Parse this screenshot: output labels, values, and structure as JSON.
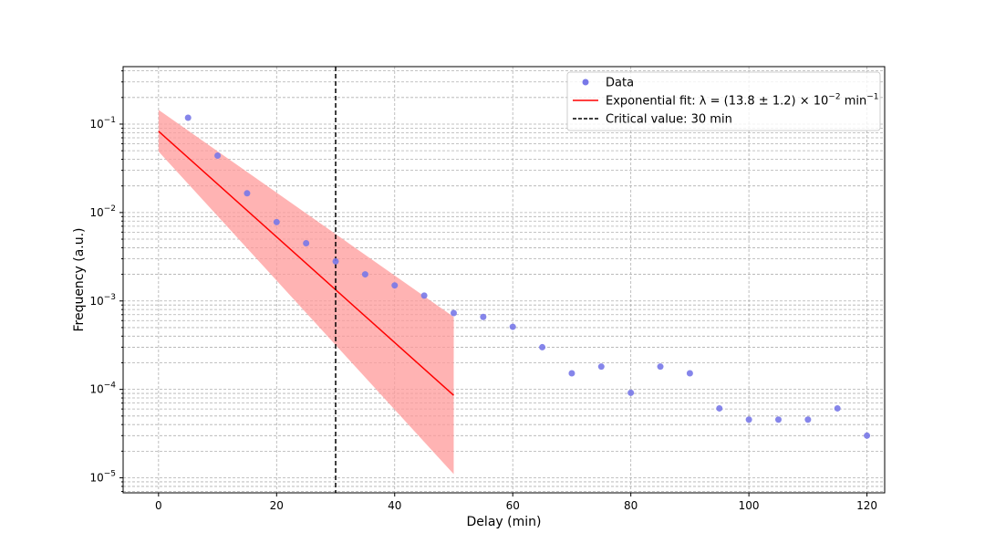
{
  "chart_data": {
    "type": "scatter",
    "xlabel": "Delay (min)",
    "ylabel": "Frequency (a.u.)",
    "xlim": [
      -6,
      123
    ],
    "ylim_log10": [
      -5.17,
      -0.35
    ],
    "yscale": "log",
    "grid": true,
    "legend_position": "top-right",
    "x_ticks": [
      0,
      20,
      40,
      60,
      80,
      100,
      120
    ],
    "x_tick_labels": [
      "0",
      "20",
      "40",
      "60",
      "80",
      "100",
      "120"
    ],
    "y_major_ticks_exp": [
      -1,
      -2,
      -3,
      -4,
      -5
    ],
    "y_tick_base": "10",
    "series": [
      {
        "name": "Data",
        "kind": "scatter",
        "color": "#7878e8",
        "x": [
          5,
          10,
          15,
          20,
          25,
          30,
          35,
          40,
          45,
          50,
          55,
          60,
          65,
          70,
          75,
          80,
          85,
          90,
          95,
          100,
          105,
          110,
          115,
          120
        ],
        "y": [
          0.118,
          0.044,
          0.0165,
          0.0078,
          0.0045,
          0.0028,
          0.002,
          0.0015,
          0.00115,
          0.00073,
          0.00066,
          0.00051,
          0.0003,
          0.000152,
          0.000181,
          9.15e-05,
          0.000181,
          0.000152,
          6.1e-05,
          4.55e-05,
          4.55e-05,
          4.55e-05,
          6.1e-05,
          3e-05
        ]
      },
      {
        "name": "Exponential fit: λ = (13.8 ± 1.2) × 10⁻² min⁻¹",
        "kind": "line",
        "color": "#ff0000",
        "x": [
          0,
          50
        ],
        "y": [
          0.083,
          8.55e-05
        ]
      },
      {
        "name": "Critical value: 30 min",
        "kind": "vline",
        "color": "#000000",
        "x": 30
      }
    ],
    "fit_band": {
      "color": "#ff9999",
      "x": [
        0,
        50
      ],
      "upper": [
        0.145,
        0.00066
      ],
      "lower": [
        0.049,
        1.1e-05
      ]
    },
    "legend": {
      "entries": [
        {
          "label": "Data"
        },
        {
          "label_main": "Exponential fit: λ = (13.8 ± 1.2) × 10",
          "label_exp": "−2",
          "label_unit": " min",
          "label_unit_exp": "−1"
        },
        {
          "label": "Critical value: 30 min"
        }
      ]
    }
  }
}
